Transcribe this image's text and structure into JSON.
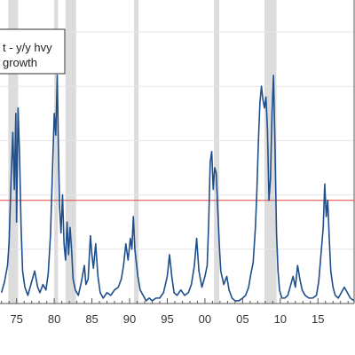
{
  "chart_data": {
    "type": "line",
    "title": "",
    "xlabel": "",
    "ylabel": "",
    "legend": {
      "lines": [
        "t - y/y hvy",
        "growth"
      ],
      "placement": "top-left"
    },
    "x_tick_labels": [
      {
        "year": 1975,
        "label": "75"
      },
      {
        "year": 1980,
        "label": "80"
      },
      {
        "year": 1985,
        "label": "85"
      },
      {
        "year": 1990,
        "label": "90"
      },
      {
        "year": 1995,
        "label": "95"
      },
      {
        "year": 2000,
        "label": "00"
      },
      {
        "year": 2005,
        "label": "05"
      },
      {
        "year": 2010,
        "label": "10"
      },
      {
        "year": 2015,
        "label": "15"
      }
    ],
    "xlim": [
      1972.8,
      2019.8
    ],
    "ylim": [
      0,
      100
    ],
    "grid": true,
    "threshold": {
      "value": 38,
      "color": "#e0483a"
    },
    "recession_bands": [
      [
        1973.9,
        1975.2
      ],
      [
        1980.0,
        1980.5
      ],
      [
        1981.5,
        1982.9
      ],
      [
        1990.6,
        1991.2
      ],
      [
        2001.2,
        2001.9
      ],
      [
        2007.9,
        2009.5
      ]
    ],
    "series": [
      {
        "color": "#1f4e8c",
        "points": [
          [
            1973.0,
            4
          ],
          [
            1973.4,
            8
          ],
          [
            1973.8,
            14
          ],
          [
            1974.0,
            22
          ],
          [
            1974.3,
            48
          ],
          [
            1974.5,
            63
          ],
          [
            1974.7,
            42
          ],
          [
            1974.9,
            70
          ],
          [
            1975.0,
            30
          ],
          [
            1975.2,
            72
          ],
          [
            1975.4,
            54
          ],
          [
            1975.6,
            28
          ],
          [
            1975.8,
            12
          ],
          [
            1976.1,
            6
          ],
          [
            1976.5,
            3
          ],
          [
            1977.0,
            8
          ],
          [
            1977.4,
            12
          ],
          [
            1977.8,
            6
          ],
          [
            1978.1,
            4
          ],
          [
            1978.5,
            7
          ],
          [
            1978.9,
            5
          ],
          [
            1979.2,
            11
          ],
          [
            1979.5,
            25
          ],
          [
            1979.8,
            52
          ],
          [
            1980.0,
            70
          ],
          [
            1980.2,
            62
          ],
          [
            1980.4,
            84
          ],
          [
            1980.55,
            58
          ],
          [
            1980.7,
            36
          ],
          [
            1980.9,
            26
          ],
          [
            1981.1,
            40
          ],
          [
            1981.3,
            22
          ],
          [
            1981.5,
            16
          ],
          [
            1981.7,
            30
          ],
          [
            1981.9,
            18
          ],
          [
            1982.1,
            28
          ],
          [
            1982.3,
            20
          ],
          [
            1982.5,
            9
          ],
          [
            1982.8,
            5
          ],
          [
            1983.2,
            3
          ],
          [
            1983.6,
            8
          ],
          [
            1984.0,
            14
          ],
          [
            1984.2,
            7
          ],
          [
            1984.5,
            9
          ],
          [
            1984.8,
            25
          ],
          [
            1985.0,
            18
          ],
          [
            1985.2,
            13
          ],
          [
            1985.5,
            22
          ],
          [
            1985.8,
            10
          ],
          [
            1986.1,
            4
          ],
          [
            1986.5,
            2
          ],
          [
            1987.0,
            4
          ],
          [
            1987.5,
            3
          ],
          [
            1988.0,
            5
          ],
          [
            1988.5,
            6
          ],
          [
            1988.9,
            9
          ],
          [
            1989.2,
            14
          ],
          [
            1989.5,
            22
          ],
          [
            1989.8,
            16
          ],
          [
            1990.1,
            24
          ],
          [
            1990.3,
            20
          ],
          [
            1990.5,
            32
          ],
          [
            1990.7,
            20
          ],
          [
            1990.9,
            15
          ],
          [
            1991.1,
            10
          ],
          [
            1991.4,
            5
          ],
          [
            1991.8,
            3
          ],
          [
            1992.2,
            1
          ],
          [
            1992.6,
            2
          ],
          [
            1993.0,
            1
          ],
          [
            1993.5,
            2
          ],
          [
            1994.0,
            2
          ],
          [
            1994.5,
            4
          ],
          [
            1995.0,
            10
          ],
          [
            1995.3,
            18
          ],
          [
            1995.6,
            10
          ],
          [
            1995.9,
            4
          ],
          [
            1996.3,
            3
          ],
          [
            1996.8,
            5
          ],
          [
            1997.3,
            3
          ],
          [
            1997.8,
            4
          ],
          [
            1998.2,
            7
          ],
          [
            1998.6,
            14
          ],
          [
            1998.9,
            24
          ],
          [
            1999.2,
            12
          ],
          [
            1999.6,
            6
          ],
          [
            2000.0,
            10
          ],
          [
            2000.3,
            14
          ],
          [
            2000.5,
            30
          ],
          [
            2000.7,
            52
          ],
          [
            2000.9,
            56
          ],
          [
            2001.1,
            42
          ],
          [
            2001.3,
            50
          ],
          [
            2001.5,
            48
          ],
          [
            2001.7,
            35
          ],
          [
            2001.9,
            22
          ],
          [
            2002.1,
            12
          ],
          [
            2002.5,
            7
          ],
          [
            2002.9,
            10
          ],
          [
            2003.2,
            5
          ],
          [
            2003.6,
            2
          ],
          [
            2004.0,
            1
          ],
          [
            2004.5,
            1
          ],
          [
            2005.0,
            2
          ],
          [
            2005.4,
            3
          ],
          [
            2005.8,
            6
          ],
          [
            2006.1,
            11
          ],
          [
            2006.4,
            15
          ],
          [
            2006.7,
            28
          ],
          [
            2006.9,
            42
          ],
          [
            2007.1,
            60
          ],
          [
            2007.3,
            74
          ],
          [
            2007.5,
            80
          ],
          [
            2007.7,
            75
          ],
          [
            2007.9,
            72
          ],
          [
            2008.1,
            76
          ],
          [
            2008.3,
            64
          ],
          [
            2008.5,
            38
          ],
          [
            2008.7,
            46
          ],
          [
            2008.9,
            70
          ],
          [
            2009.1,
            84
          ],
          [
            2009.3,
            58
          ],
          [
            2009.5,
            26
          ],
          [
            2009.7,
            12
          ],
          [
            2009.9,
            5
          ],
          [
            2010.2,
            2
          ],
          [
            2010.6,
            2
          ],
          [
            2011.0,
            3
          ],
          [
            2011.4,
            7
          ],
          [
            2011.7,
            10
          ],
          [
            2012.0,
            6
          ],
          [
            2012.3,
            14
          ],
          [
            2012.6,
            9
          ],
          [
            2012.9,
            5
          ],
          [
            2013.3,
            3
          ],
          [
            2013.8,
            2
          ],
          [
            2014.3,
            2
          ],
          [
            2014.8,
            3
          ],
          [
            2015.1,
            8
          ],
          [
            2015.4,
            18
          ],
          [
            2015.7,
            28
          ],
          [
            2015.9,
            44
          ],
          [
            2016.1,
            32
          ],
          [
            2016.3,
            38
          ],
          [
            2016.5,
            24
          ],
          [
            2016.7,
            12
          ],
          [
            2017.0,
            6
          ],
          [
            2017.3,
            3
          ],
          [
            2017.7,
            2
          ],
          [
            2018.1,
            4
          ],
          [
            2018.5,
            6
          ],
          [
            2018.9,
            4
          ],
          [
            2019.3,
            2
          ],
          [
            2019.8,
            1
          ]
        ]
      }
    ]
  }
}
